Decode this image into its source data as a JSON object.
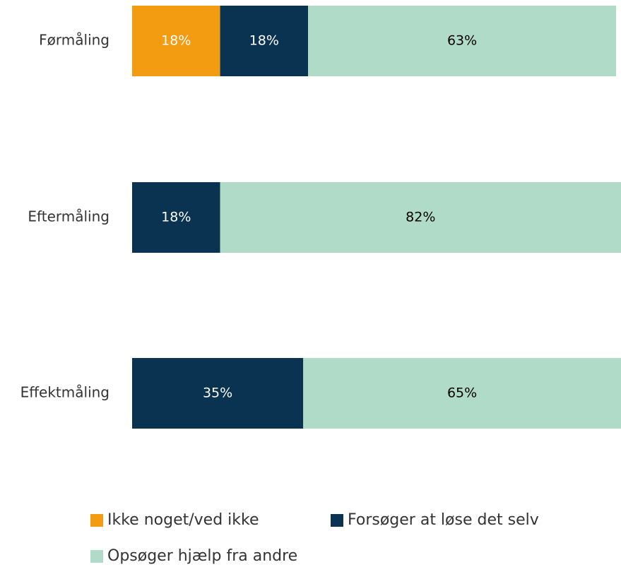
{
  "chart_data": {
    "type": "stacked_barh",
    "categories": [
      "Førmåling",
      "Eftermåling",
      "Effektmåling"
    ],
    "series": [
      {
        "name": "Ikke noget/ved ikke",
        "color": "#f39c12",
        "text_color": "#ffffff",
        "values": [
          18,
          null,
          null
        ],
        "value_labels": [
          "18%",
          null,
          null
        ]
      },
      {
        "name": "Forsøger at løse det selv",
        "color": "#0a3352",
        "text_color": "#ffffff",
        "values": [
          18,
          18,
          35
        ],
        "value_labels": [
          "18%",
          "18%",
          "35%"
        ]
      },
      {
        "name": "Opsøger hjælp fra andre",
        "color": "#b0dbc9",
        "text_color": "#000000",
        "values": [
          63,
          82,
          65
        ],
        "value_labels": [
          "63%",
          "82%",
          "65%"
        ]
      }
    ],
    "xlim": [
      0,
      100
    ],
    "legend": "bottom"
  }
}
